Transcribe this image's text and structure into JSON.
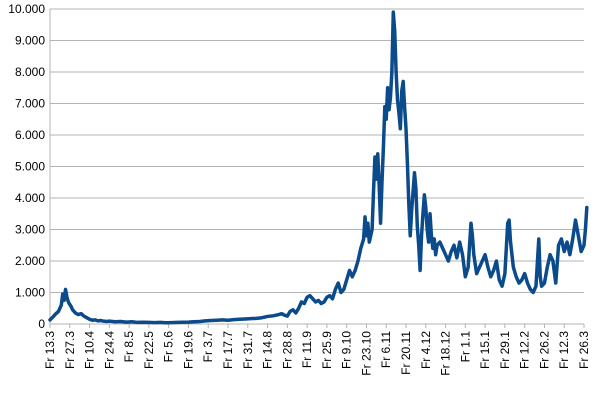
{
  "chart_data": {
    "type": "line",
    "title": "",
    "xlabel": "",
    "ylabel": "",
    "ylim": [
      0,
      10000
    ],
    "yticks": [
      {
        "value": 0,
        "label": "0"
      },
      {
        "value": 1000,
        "label": "1.000"
      },
      {
        "value": 2000,
        "label": "2.000"
      },
      {
        "value": 3000,
        "label": "3.000"
      },
      {
        "value": 4000,
        "label": "4.000"
      },
      {
        "value": 5000,
        "label": "5.000"
      },
      {
        "value": 6000,
        "label": "6.000"
      },
      {
        "value": 7000,
        "label": "7.000"
      },
      {
        "value": 8000,
        "label": "8.000"
      },
      {
        "value": 9000,
        "label": "9.000"
      },
      {
        "value": 10000,
        "label": "10.000"
      }
    ],
    "xticks": [
      {
        "value": 0,
        "label": "Fr 13.3"
      },
      {
        "value": 14,
        "label": "Fr 27.3"
      },
      {
        "value": 28,
        "label": "Fr 10.4"
      },
      {
        "value": 42,
        "label": "Fr 24.4"
      },
      {
        "value": 56,
        "label": "Fr 8.5"
      },
      {
        "value": 70,
        "label": "Fr 22.5"
      },
      {
        "value": 84,
        "label": "Fr 5.6"
      },
      {
        "value": 98,
        "label": "Fr 19.6"
      },
      {
        "value": 112,
        "label": "Fr 3.7"
      },
      {
        "value": 126,
        "label": "Fr 17.7"
      },
      {
        "value": 140,
        "label": "Fr 31.7"
      },
      {
        "value": 154,
        "label": "Fr 14.8"
      },
      {
        "value": 168,
        "label": "Fr 28.8"
      },
      {
        "value": 182,
        "label": "Fr 11.9"
      },
      {
        "value": 196,
        "label": "Fr 25.9"
      },
      {
        "value": 210,
        "label": "Fr 9.10"
      },
      {
        "value": 224,
        "label": "Fr 23.10"
      },
      {
        "value": 238,
        "label": "Fr 6.11"
      },
      {
        "value": 252,
        "label": "Fr 20.11"
      },
      {
        "value": 266,
        "label": "Fr 4.12"
      },
      {
        "value": 280,
        "label": "Fr 18.12"
      },
      {
        "value": 294,
        "label": "Fr 1.1"
      },
      {
        "value": 308,
        "label": "Fr 15.1"
      },
      {
        "value": 322,
        "label": "Fr 29.1"
      },
      {
        "value": 336,
        "label": "Fr 12.2"
      },
      {
        "value": 350,
        "label": "Fr 26.2"
      },
      {
        "value": 364,
        "label": "Fr 12.3"
      },
      {
        "value": 378,
        "label": "Fr 26.3"
      }
    ],
    "xlim": [
      0,
      378
    ],
    "grid": true,
    "series": [
      {
        "color": "#0b4a8b",
        "points": [
          [
            0,
            130
          ],
          [
            2,
            220
          ],
          [
            4,
            320
          ],
          [
            6,
            400
          ],
          [
            8,
            600
          ],
          [
            9,
            950
          ],
          [
            10,
            750
          ],
          [
            11,
            1100
          ],
          [
            12,
            850
          ],
          [
            13,
            700
          ],
          [
            14,
            620
          ],
          [
            15,
            550
          ],
          [
            16,
            450
          ],
          [
            18,
            350
          ],
          [
            20,
            300
          ],
          [
            22,
            330
          ],
          [
            24,
            250
          ],
          [
            26,
            200
          ],
          [
            28,
            150
          ],
          [
            30,
            120
          ],
          [
            32,
            130
          ],
          [
            34,
            100
          ],
          [
            36,
            110
          ],
          [
            38,
            90
          ],
          [
            40,
            80
          ],
          [
            42,
            90
          ],
          [
            46,
            70
          ],
          [
            50,
            80
          ],
          [
            54,
            60
          ],
          [
            58,
            70
          ],
          [
            62,
            50
          ],
          [
            66,
            55
          ],
          [
            70,
            50
          ],
          [
            74,
            45
          ],
          [
            78,
            50
          ],
          [
            82,
            40
          ],
          [
            86,
            45
          ],
          [
            90,
            50
          ],
          [
            94,
            55
          ],
          [
            98,
            60
          ],
          [
            102,
            70
          ],
          [
            106,
            80
          ],
          [
            110,
            100
          ],
          [
            114,
            110
          ],
          [
            118,
            120
          ],
          [
            122,
            130
          ],
          [
            126,
            120
          ],
          [
            130,
            140
          ],
          [
            134,
            150
          ],
          [
            138,
            160
          ],
          [
            142,
            170
          ],
          [
            146,
            180
          ],
          [
            150,
            200
          ],
          [
            154,
            240
          ],
          [
            158,
            260
          ],
          [
            162,
            300
          ],
          [
            164,
            330
          ],
          [
            166,
            280
          ],
          [
            168,
            250
          ],
          [
            170,
            400
          ],
          [
            172,
            450
          ],
          [
            174,
            350
          ],
          [
            176,
            500
          ],
          [
            178,
            700
          ],
          [
            180,
            650
          ],
          [
            182,
            850
          ],
          [
            184,
            900
          ],
          [
            186,
            800
          ],
          [
            188,
            700
          ],
          [
            190,
            750
          ],
          [
            192,
            650
          ],
          [
            194,
            700
          ],
          [
            196,
            850
          ],
          [
            198,
            900
          ],
          [
            200,
            800
          ],
          [
            202,
            1100
          ],
          [
            204,
            1300
          ],
          [
            206,
            1000
          ],
          [
            208,
            1100
          ],
          [
            210,
            1400
          ],
          [
            212,
            1700
          ],
          [
            214,
            1500
          ],
          [
            216,
            1700
          ],
          [
            218,
            2000
          ],
          [
            220,
            2400
          ],
          [
            222,
            2700
          ],
          [
            223,
            3400
          ],
          [
            224,
            2800
          ],
          [
            225,
            3200
          ],
          [
            226,
            2600
          ],
          [
            228,
            3000
          ],
          [
            229,
            4200
          ],
          [
            230,
            5300
          ],
          [
            231,
            4600
          ],
          [
            232,
            5400
          ],
          [
            233,
            4400
          ],
          [
            234,
            3200
          ],
          [
            235,
            4500
          ],
          [
            236,
            5600
          ],
          [
            237,
            6900
          ],
          [
            238,
            6500
          ],
          [
            239,
            7500
          ],
          [
            240,
            6800
          ],
          [
            241,
            7200
          ],
          [
            242,
            8000
          ],
          [
            243,
            9900
          ],
          [
            244,
            9300
          ],
          [
            245,
            8000
          ],
          [
            246,
            7100
          ],
          [
            247,
            6700
          ],
          [
            248,
            6200
          ],
          [
            249,
            7400
          ],
          [
            250,
            7700
          ],
          [
            251,
            6900
          ],
          [
            252,
            6200
          ],
          [
            253,
            5100
          ],
          [
            254,
            3800
          ],
          [
            255,
            2800
          ],
          [
            256,
            3600
          ],
          [
            257,
            4200
          ],
          [
            258,
            4800
          ],
          [
            259,
            4300
          ],
          [
            260,
            3100
          ],
          [
            261,
            2500
          ],
          [
            262,
            1700
          ],
          [
            263,
            2800
          ],
          [
            264,
            3500
          ],
          [
            265,
            4100
          ],
          [
            266,
            3700
          ],
          [
            267,
            3000
          ],
          [
            268,
            2600
          ],
          [
            269,
            3500
          ],
          [
            270,
            2800
          ],
          [
            271,
            2400
          ],
          [
            272,
            2700
          ],
          [
            273,
            2200
          ],
          [
            274,
            2500
          ],
          [
            276,
            2600
          ],
          [
            278,
            2400
          ],
          [
            280,
            2200
          ],
          [
            282,
            2000
          ],
          [
            284,
            2300
          ],
          [
            286,
            2500
          ],
          [
            288,
            2100
          ],
          [
            290,
            2600
          ],
          [
            292,
            2200
          ],
          [
            294,
            1500
          ],
          [
            296,
            1800
          ],
          [
            298,
            3200
          ],
          [
            299,
            2800
          ],
          [
            300,
            2200
          ],
          [
            302,
            1600
          ],
          [
            304,
            1800
          ],
          [
            306,
            2000
          ],
          [
            308,
            2200
          ],
          [
            310,
            1800
          ],
          [
            312,
            1500
          ],
          [
            314,
            1700
          ],
          [
            316,
            2000
          ],
          [
            318,
            1400
          ],
          [
            320,
            1200
          ],
          [
            322,
            1600
          ],
          [
            324,
            3200
          ],
          [
            325,
            3300
          ],
          [
            326,
            2600
          ],
          [
            328,
            1800
          ],
          [
            330,
            1500
          ],
          [
            332,
            1300
          ],
          [
            334,
            1400
          ],
          [
            336,
            1600
          ],
          [
            338,
            1300
          ],
          [
            340,
            1100
          ],
          [
            342,
            1000
          ],
          [
            344,
            1200
          ],
          [
            346,
            2700
          ],
          [
            347,
            1500
          ],
          [
            348,
            1200
          ],
          [
            350,
            1300
          ],
          [
            352,
            1800
          ],
          [
            354,
            2200
          ],
          [
            356,
            2000
          ],
          [
            358,
            1300
          ],
          [
            360,
            2500
          ],
          [
            362,
            2700
          ],
          [
            364,
            2300
          ],
          [
            366,
            2600
          ],
          [
            368,
            2200
          ],
          [
            370,
            2700
          ],
          [
            372,
            3300
          ],
          [
            374,
            2800
          ],
          [
            376,
            2300
          ],
          [
            378,
            2500
          ],
          [
            379,
            3000
          ],
          [
            380,
            3700
          ]
        ]
      }
    ]
  }
}
